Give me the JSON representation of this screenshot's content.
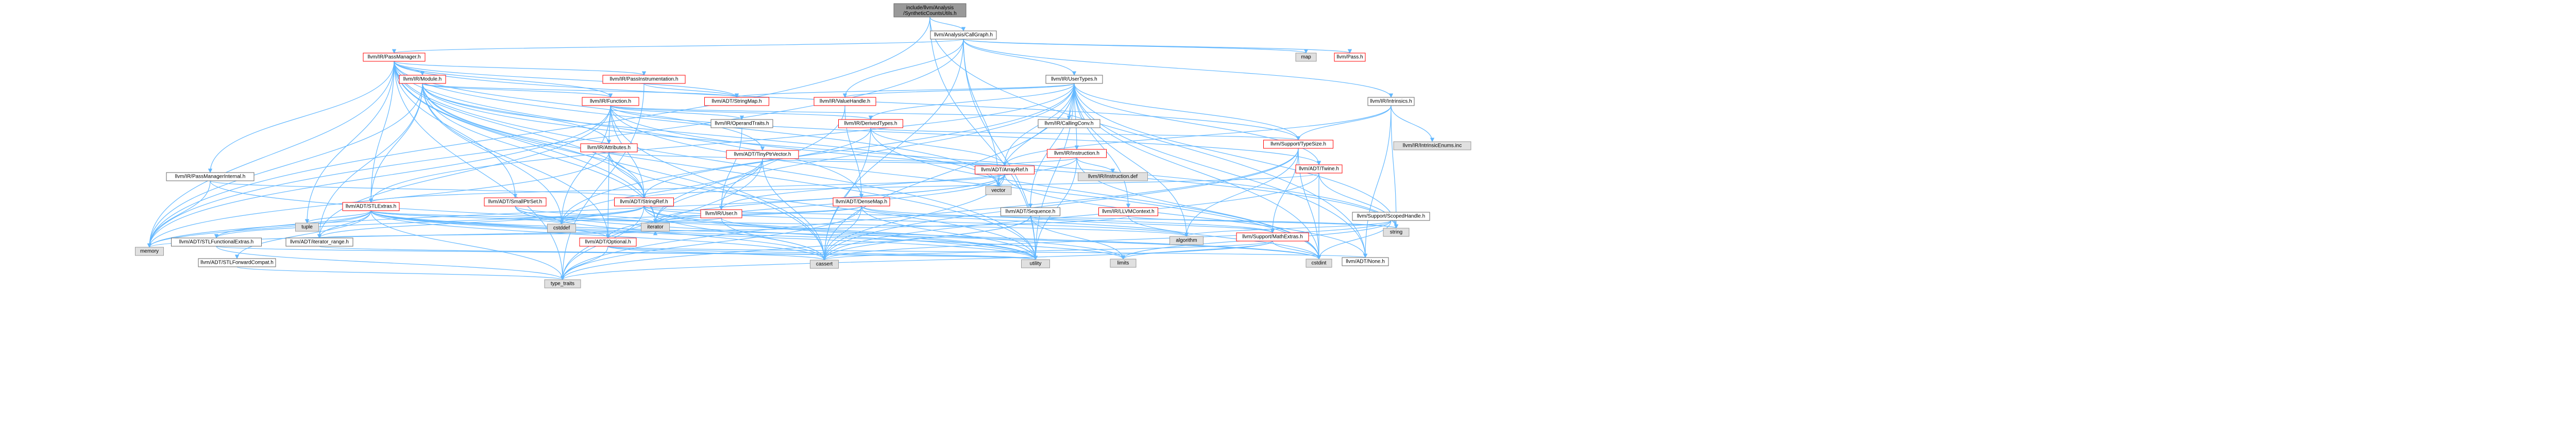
{
  "colors": {
    "root_fill": "#999999",
    "internal_fill": "#ffffff",
    "internal_stroke": "#ff0000",
    "external_fill": "#e0e0e0",
    "external_stroke": "#999999",
    "edge": "#63b8ff"
  },
  "nodes": [
    {
      "id": "root",
      "kind": "root",
      "label": "include/llvm/Analysis\n/SyntheticCountsUtils.h"
    },
    {
      "id": "cg",
      "kind": "plain",
      "label": "llvm/Analysis/CallGraph.h"
    },
    {
      "id": "pm",
      "kind": "internal",
      "label": "llvm/IR/PassManager.h"
    },
    {
      "id": "map",
      "kind": "external",
      "label": "map"
    },
    {
      "id": "pass",
      "kind": "internal",
      "label": "llvm/Pass.h"
    },
    {
      "id": "usertypes",
      "kind": "plain",
      "label": "llvm/IR/UserTypes.h"
    },
    {
      "id": "intrinsics",
      "kind": "plain",
      "label": "llvm/IR/Intrinsics.h"
    },
    {
      "id": "module",
      "kind": "internal",
      "label": "llvm/IR/Module.h"
    },
    {
      "id": "passinstr",
      "kind": "internal",
      "label": "llvm/IR/PassInstrumentation.h"
    },
    {
      "id": "pmint",
      "kind": "plain",
      "label": "llvm/IR/PassManagerInternal.h"
    },
    {
      "id": "function",
      "kind": "internal",
      "label": "llvm/IR/Function.h"
    },
    {
      "id": "stringmap",
      "kind": "internal",
      "label": "llvm/ADT/StringMap.h"
    },
    {
      "id": "valuehandle",
      "kind": "internal",
      "label": "llvm/IR/ValueHandle.h"
    },
    {
      "id": "callingconv",
      "kind": "plain",
      "label": "llvm/IR/CallingConv.h"
    },
    {
      "id": "derivedtypes",
      "kind": "internal",
      "label": "llvm/IR/DerivedTypes.h"
    },
    {
      "id": "operandtraits",
      "kind": "plain",
      "label": "llvm/IR/OperandTraits.h"
    },
    {
      "id": "attributes",
      "kind": "internal",
      "label": "llvm/IR/Attributes.h"
    },
    {
      "id": "tinyptrvector",
      "kind": "internal",
      "label": "llvm/ADT/TinyPtrVector.h"
    },
    {
      "id": "instruction",
      "kind": "internal",
      "label": "llvm/IR/Instruction.h"
    },
    {
      "id": "typesize",
      "kind": "internal",
      "label": "llvm/Support/TypeSize.h"
    },
    {
      "id": "twine",
      "kind": "internal",
      "label": "llvm/ADT/Twine.h"
    },
    {
      "id": "intrinsicenums",
      "kind": "external",
      "label": "llvm/IR/IntrinsicEnums.inc"
    },
    {
      "id": "arrayref",
      "kind": "internal",
      "label": "llvm/ADT/ArrayRef.h"
    },
    {
      "id": "instructiondef",
      "kind": "external",
      "label": "llvm/IR/Instruction.def"
    },
    {
      "id": "vector",
      "kind": "external",
      "label": "vector"
    },
    {
      "id": "sequence",
      "kind": "plain",
      "label": "llvm/ADT/Sequence.h"
    },
    {
      "id": "llvmcontext",
      "kind": "internal",
      "label": "llvm/IR/LLVMContext.h"
    },
    {
      "id": "scopedexit",
      "kind": "plain",
      "label": "llvm/Support/ScopedHandle.h"
    },
    {
      "id": "stlextras",
      "kind": "internal",
      "label": "llvm/ADT/STLExtras.h"
    },
    {
      "id": "smallptrset",
      "kind": "internal",
      "label": "llvm/ADT/SmallPtrSet.h"
    },
    {
      "id": "stringref",
      "kind": "internal",
      "label": "llvm/ADT/StringRef.h"
    },
    {
      "id": "densemap",
      "kind": "internal",
      "label": "llvm/ADT/DenseMap.h"
    },
    {
      "id": "user",
      "kind": "internal",
      "label": "llvm/IR/User.h"
    },
    {
      "id": "mathextras",
      "kind": "internal",
      "label": "llvm/Support/MathExtras.h"
    },
    {
      "id": "optional",
      "kind": "internal",
      "label": "llvm/ADT/Optional.h"
    },
    {
      "id": "iteratorrange",
      "kind": "plain",
      "label": "llvm/ADT/iterator_range.h"
    },
    {
      "id": "stlfuncextras",
      "kind": "plain",
      "label": "llvm/ADT/STLFunctionalExtras.h"
    },
    {
      "id": "stlforward",
      "kind": "plain",
      "label": "llvm/ADT/STLForwardCompat.h"
    },
    {
      "id": "none",
      "kind": "plain",
      "label": "llvm/ADT/None.h"
    },
    {
      "id": "memory",
      "kind": "external",
      "label": "memory"
    },
    {
      "id": "tuple",
      "kind": "external",
      "label": "tuple"
    },
    {
      "id": "cstddef",
      "kind": "external",
      "label": "cstddef"
    },
    {
      "id": "iterator",
      "kind": "external",
      "label": "iterator"
    },
    {
      "id": "algorithm",
      "kind": "external",
      "label": "algorithm"
    },
    {
      "id": "string",
      "kind": "external",
      "label": "string"
    },
    {
      "id": "utility",
      "kind": "external",
      "label": "utility"
    },
    {
      "id": "cassert",
      "kind": "external",
      "label": "cassert"
    },
    {
      "id": "limits",
      "kind": "external",
      "label": "limits"
    },
    {
      "id": "cstdint",
      "kind": "external",
      "label": "cstdint"
    },
    {
      "id": "typetraits",
      "kind": "external",
      "label": "type_traits"
    }
  ],
  "edges": [
    [
      "root",
      "cg"
    ],
    [
      "root",
      "memory"
    ],
    [
      "root",
      "utility"
    ],
    [
      "root",
      "none"
    ],
    [
      "cg",
      "pm"
    ],
    [
      "cg",
      "map"
    ],
    [
      "cg",
      "pass"
    ],
    [
      "cg",
      "usertypes"
    ],
    [
      "cg",
      "intrinsics"
    ],
    [
      "cg",
      "valuehandle"
    ],
    [
      "cg",
      "cassert"
    ],
    [
      "cg",
      "memory"
    ],
    [
      "cg",
      "utility"
    ],
    [
      "cg",
      "vector"
    ],
    [
      "pm",
      "module"
    ],
    [
      "pm",
      "passinstr"
    ],
    [
      "pm",
      "pmint"
    ],
    [
      "pm",
      "function"
    ],
    [
      "pm",
      "stringref"
    ],
    [
      "pm",
      "tinyptrvector"
    ],
    [
      "pm",
      "stlextras"
    ],
    [
      "pm",
      "smallptrset"
    ],
    [
      "pm",
      "densemap"
    ],
    [
      "pm",
      "cassert"
    ],
    [
      "pm",
      "cstring"
    ],
    [
      "pm",
      "iterator"
    ],
    [
      "pm",
      "list"
    ],
    [
      "pm",
      "memory"
    ],
    [
      "pm",
      "tuple"
    ],
    [
      "pm",
      "typetraits"
    ],
    [
      "pm",
      "utility"
    ],
    [
      "pm",
      "vector"
    ],
    [
      "pm",
      "stringmap"
    ],
    [
      "pm",
      "typesize"
    ],
    [
      "module",
      "function"
    ],
    [
      "module",
      "attributes"
    ],
    [
      "module",
      "stringmap"
    ],
    [
      "module",
      "stringref"
    ],
    [
      "module",
      "stlextras"
    ],
    [
      "module",
      "optional"
    ],
    [
      "module",
      "iteratorrange"
    ],
    [
      "module",
      "cstddef"
    ],
    [
      "module",
      "iterator"
    ],
    [
      "module",
      "memory"
    ],
    [
      "module",
      "string"
    ],
    [
      "module",
      "vector"
    ],
    [
      "module",
      "utility"
    ],
    [
      "passinstr",
      "stringmap"
    ],
    [
      "passinstr",
      "any"
    ],
    [
      "passinstr",
      "functionalextra"
    ],
    [
      "passinstr",
      "typetraits"
    ],
    [
      "passinstr",
      "smallvector"
    ],
    [
      "pmint",
      "stringref"
    ],
    [
      "pmint",
      "memory"
    ],
    [
      "pmint",
      "utility"
    ],
    [
      "function",
      "derivedtypes"
    ],
    [
      "function",
      "operandtraits"
    ],
    [
      "function",
      "attributes"
    ],
    [
      "function",
      "callingconv"
    ],
    [
      "function",
      "stringref"
    ],
    [
      "function",
      "twine"
    ],
    [
      "function",
      "iteratorrange"
    ],
    [
      "function",
      "cassert"
    ],
    [
      "function",
      "cstddef"
    ],
    [
      "function",
      "cstdint"
    ],
    [
      "function",
      "memory"
    ],
    [
      "function",
      "string"
    ],
    [
      "usertypes",
      "stringmap"
    ],
    [
      "usertypes",
      "valuehandle"
    ],
    [
      "usertypes",
      "callingconv"
    ],
    [
      "usertypes",
      "derivedtypes"
    ],
    [
      "usertypes",
      "instruction"
    ],
    [
      "usertypes",
      "typesize"
    ],
    [
      "usertypes",
      "twine"
    ],
    [
      "usertypes",
      "arrayref"
    ],
    [
      "usertypes",
      "vector"
    ],
    [
      "usertypes",
      "sequence"
    ],
    [
      "usertypes",
      "llvmcontext"
    ],
    [
      "usertypes",
      "stlextras"
    ],
    [
      "usertypes",
      "cstddef"
    ],
    [
      "usertypes",
      "cstdint"
    ],
    [
      "usertypes",
      "string"
    ],
    [
      "usertypes",
      "iterator"
    ],
    [
      "usertypes",
      "algorithm"
    ],
    [
      "usertypes",
      "cassert"
    ],
    [
      "usertypes",
      "utility"
    ],
    [
      "usertypes",
      "none"
    ],
    [
      "intrinsics",
      "intrinsicenums"
    ],
    [
      "intrinsics",
      "typesize"
    ],
    [
      "intrinsics",
      "arrayref"
    ],
    [
      "intrinsics",
      "string"
    ],
    [
      "intrinsics",
      "none"
    ],
    [
      "valuehandle",
      "densemap"
    ],
    [
      "valuehandle",
      "user"
    ],
    [
      "derivedtypes",
      "arrayref"
    ],
    [
      "derivedtypes",
      "stringref"
    ],
    [
      "derivedtypes",
      "typesize"
    ],
    [
      "derivedtypes",
      "cassert"
    ],
    [
      "derivedtypes",
      "cstdint"
    ],
    [
      "operandtraits",
      "user"
    ],
    [
      "attributes",
      "arrayref"
    ],
    [
      "attributes",
      "optional"
    ],
    [
      "attributes",
      "stringref"
    ],
    [
      "attributes",
      "bitmask"
    ],
    [
      "attributes",
      "memory"
    ],
    [
      "attributes",
      "utility"
    ],
    [
      "tinyptrvector",
      "arrayref"
    ],
    [
      "tinyptrvector",
      "smallvector"
    ],
    [
      "tinyptrvector",
      "cassert"
    ],
    [
      "tinyptrvector",
      "cstddef"
    ],
    [
      "tinyptrvector",
      "iterator"
    ],
    [
      "tinyptrvector",
      "typetraits"
    ],
    [
      "instruction",
      "arrayref"
    ],
    [
      "instruction",
      "instructiondef"
    ],
    [
      "instruction",
      "user"
    ],
    [
      "instruction",
      "cstdint"
    ],
    [
      "instruction",
      "utility"
    ],
    [
      "typesize",
      "mathextras"
    ],
    [
      "typesize",
      "algorithm"
    ],
    [
      "typesize",
      "cassert"
    ],
    [
      "typesize",
      "cstdint"
    ],
    [
      "typesize",
      "typetraits"
    ],
    [
      "twine",
      "stringref"
    ],
    [
      "twine",
      "cassert"
    ],
    [
      "twine",
      "cstdint"
    ],
    [
      "twine",
      "string"
    ],
    [
      "arrayref",
      "stlextras"
    ],
    [
      "arrayref",
      "optional"
    ],
    [
      "arrayref",
      "none"
    ],
    [
      "arrayref",
      "vector"
    ],
    [
      "arrayref",
      "cassert"
    ],
    [
      "arrayref",
      "iterator"
    ],
    [
      "arrayref",
      "memory"
    ],
    [
      "sequence",
      "cassert"
    ],
    [
      "sequence",
      "limits"
    ],
    [
      "sequence",
      "typetraits"
    ],
    [
      "sequence",
      "mathextras"
    ],
    [
      "llvmcontext",
      "cstdint"
    ],
    [
      "llvmcontext",
      "memory"
    ],
    [
      "llvmcontext",
      "string"
    ],
    [
      "scopedexit",
      "cassert"
    ],
    [
      "scopedexit",
      "cstdint"
    ],
    [
      "scopedexit",
      "limits"
    ],
    [
      "scopedexit",
      "algorithm"
    ],
    [
      "stlextras",
      "stlforward"
    ],
    [
      "stlextras",
      "stlfuncextras"
    ],
    [
      "stlextras",
      "iteratorrange"
    ],
    [
      "stlextras",
      "optional"
    ],
    [
      "stlextras",
      "cassert"
    ],
    [
      "stlextras",
      "cstddef"
    ],
    [
      "stlextras",
      "cstdint"
    ],
    [
      "stlextras",
      "iterator"
    ],
    [
      "stlextras",
      "memory"
    ],
    [
      "stlextras",
      "tuple"
    ],
    [
      "stlextras",
      "typetraits"
    ],
    [
      "stlextras",
      "utility"
    ],
    [
      "stlextras",
      "algorithm"
    ],
    [
      "stlextras",
      "limits"
    ],
    [
      "smallptrset",
      "cstdlib"
    ],
    [
      "smallptrset",
      "cstddef"
    ],
    [
      "smallptrset",
      "iterator"
    ],
    [
      "smallptrset",
      "cassert"
    ],
    [
      "smallptrset",
      "utility"
    ],
    [
      "stringref",
      "stlfuncextras"
    ],
    [
      "stringref",
      "iteratorrange"
    ],
    [
      "stringref",
      "algorithm"
    ],
    [
      "stringref",
      "cassert"
    ],
    [
      "stringref",
      "cstddef"
    ],
    [
      "stringref",
      "cstring"
    ],
    [
      "stringref",
      "limits"
    ],
    [
      "stringref",
      "string"
    ],
    [
      "stringref",
      "typetraits"
    ],
    [
      "stringref",
      "utility"
    ],
    [
      "densemap",
      "mathextras"
    ],
    [
      "densemap",
      "algorithm"
    ],
    [
      "densemap",
      "cassert"
    ],
    [
      "densemap",
      "cstddef"
    ],
    [
      "densemap",
      "iterator"
    ],
    [
      "densemap",
      "typetraits"
    ],
    [
      "densemap",
      "utility"
    ],
    [
      "user",
      "cassert"
    ],
    [
      "user",
      "cstdint"
    ],
    [
      "user",
      "iterator"
    ],
    [
      "mathextras",
      "cassert"
    ],
    [
      "mathextras",
      "limits"
    ],
    [
      "mathextras",
      "typetraits"
    ],
    [
      "mathextras",
      "cstdint"
    ],
    [
      "optional",
      "none"
    ],
    [
      "optional",
      "cassert"
    ],
    [
      "optional",
      "utility"
    ],
    [
      "optional",
      "typetraits"
    ],
    [
      "iteratorrange",
      "utility"
    ],
    [
      "iteratorrange",
      "iterator"
    ],
    [
      "stlfuncextras",
      "utility"
    ],
    [
      "stlfuncextras",
      "typetraits"
    ],
    [
      "stlforward",
      "typetraits"
    ]
  ]
}
